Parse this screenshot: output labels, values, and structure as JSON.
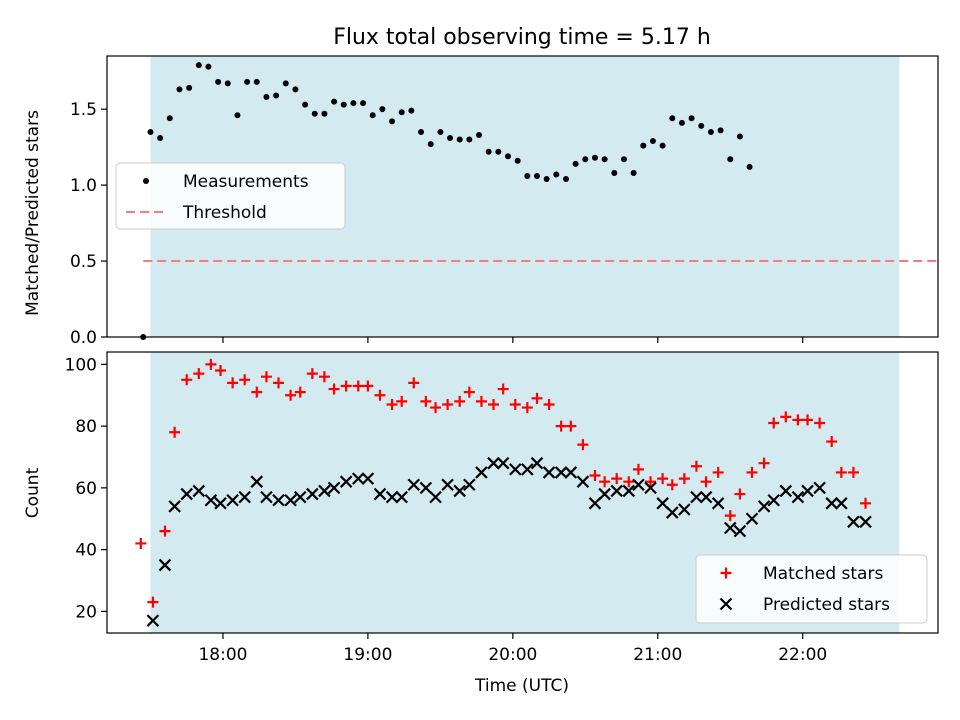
{
  "chart_data": [
    {
      "type": "scatter",
      "title": "Flux total observing time = 5.17 h",
      "xlabel": "",
      "ylabel": "Matched/Predicted stars",
      "xlim": [
        "17:12",
        "22:56"
      ],
      "ylim": [
        0,
        1.85
      ],
      "y_ticks": [
        0.0,
        0.5,
        1.0,
        1.5
      ],
      "y_tick_labels": [
        "0.0",
        "0.5",
        "1.0",
        "1.5"
      ],
      "x_ticks": [
        "18:00",
        "19:00",
        "20:00",
        "21:00",
        "22:00"
      ],
      "tick_labels_shown": false,
      "shaded_span": [
        "17:30",
        "22:40"
      ],
      "shade_color": "#d3eaf0",
      "legend_position": "center-left",
      "series": [
        {
          "name": "Measurements",
          "marker": "dot",
          "color": "#000000",
          "points": [
            [
              "17:27",
              0.0
            ],
            [
              "17:30",
              1.35
            ],
            [
              "17:34",
              1.31
            ],
            [
              "17:38",
              1.44
            ],
            [
              "17:42",
              1.63
            ],
            [
              "17:46",
              1.64
            ],
            [
              "17:50",
              1.79
            ],
            [
              "17:54",
              1.78
            ],
            [
              "17:58",
              1.68
            ],
            [
              "18:02",
              1.67
            ],
            [
              "18:06",
              1.46
            ],
            [
              "18:10",
              1.68
            ],
            [
              "18:14",
              1.68
            ],
            [
              "18:18",
              1.58
            ],
            [
              "18:22",
              1.59
            ],
            [
              "18:26",
              1.67
            ],
            [
              "18:30",
              1.63
            ],
            [
              "18:34",
              1.53
            ],
            [
              "18:38",
              1.47
            ],
            [
              "18:42",
              1.47
            ],
            [
              "18:46",
              1.55
            ],
            [
              "18:50",
              1.53
            ],
            [
              "18:54",
              1.54
            ],
            [
              "18:58",
              1.54
            ],
            [
              "19:02",
              1.46
            ],
            [
              "19:06",
              1.5
            ],
            [
              "19:10",
              1.42
            ],
            [
              "19:14",
              1.48
            ],
            [
              "19:18",
              1.49
            ],
            [
              "19:22",
              1.35
            ],
            [
              "19:26",
              1.27
            ],
            [
              "19:30",
              1.35
            ],
            [
              "19:34",
              1.31
            ],
            [
              "19:38",
              1.3
            ],
            [
              "19:42",
              1.3
            ],
            [
              "19:46",
              1.33
            ],
            [
              "19:50",
              1.22
            ],
            [
              "19:54",
              1.22
            ],
            [
              "19:58",
              1.19
            ],
            [
              "20:02",
              1.16
            ],
            [
              "20:06",
              1.06
            ],
            [
              "20:10",
              1.06
            ],
            [
              "20:14",
              1.04
            ],
            [
              "20:18",
              1.07
            ],
            [
              "20:22",
              1.04
            ],
            [
              "20:26",
              1.14
            ],
            [
              "20:30",
              1.17
            ],
            [
              "20:34",
              1.18
            ],
            [
              "20:38",
              1.17
            ],
            [
              "20:42",
              1.08
            ],
            [
              "20:46",
              1.17
            ],
            [
              "20:50",
              1.08
            ],
            [
              "20:54",
              1.26
            ],
            [
              "20:58",
              1.29
            ],
            [
              "21:02",
              1.26
            ],
            [
              "21:06",
              1.44
            ],
            [
              "21:10",
              1.41
            ],
            [
              "21:14",
              1.44
            ],
            [
              "21:18",
              1.39
            ],
            [
              "21:22",
              1.35
            ],
            [
              "21:26",
              1.36
            ],
            [
              "21:30",
              1.17
            ],
            [
              "21:34",
              1.32
            ],
            [
              "21:38",
              1.12
            ]
          ]
        },
        {
          "name": "Threshold",
          "line": "dashed",
          "color": "#f08080",
          "points": [
            [
              "17:27",
              0.5
            ],
            [
              "22:56",
              0.5
            ]
          ]
        }
      ]
    },
    {
      "type": "scatter",
      "title": "",
      "xlabel": "Time (UTC)",
      "ylabel": "Count",
      "xlim": [
        "17:12",
        "22:56"
      ],
      "ylim": [
        13,
        104
      ],
      "y_ticks": [
        20,
        40,
        60,
        80,
        100
      ],
      "y_tick_labels": [
        "20",
        "40",
        "60",
        "80",
        "100"
      ],
      "x_ticks": [
        "18:00",
        "19:00",
        "20:00",
        "21:00",
        "22:00"
      ],
      "x_tick_labels": [
        "18:00",
        "19:00",
        "20:00",
        "21:00",
        "22:00"
      ],
      "shaded_span": [
        "17:30",
        "22:40"
      ],
      "shade_color": "#d3eaf0",
      "legend_position": "lower-right",
      "series": [
        {
          "name": "Matched stars",
          "marker": "plus",
          "color": "#ff0000",
          "points": [
            [
              "17:26",
              42
            ],
            [
              "17:31",
              23
            ],
            [
              "17:36",
              46
            ],
            [
              "17:40",
              78
            ],
            [
              "17:45",
              95
            ],
            [
              "17:50",
              97
            ],
            [
              "17:55",
              100
            ],
            [
              "17:59",
              98
            ],
            [
              "18:04",
              94
            ],
            [
              "18:09",
              95
            ],
            [
              "18:14",
              91
            ],
            [
              "18:18",
              96
            ],
            [
              "18:23",
              94
            ],
            [
              "18:28",
              90
            ],
            [
              "18:32",
              91
            ],
            [
              "18:37",
              97
            ],
            [
              "18:42",
              96
            ],
            [
              "18:46",
              92
            ],
            [
              "18:51",
              93
            ],
            [
              "18:56",
              93
            ],
            [
              "19:00",
              93
            ],
            [
              "19:05",
              90
            ],
            [
              "19:10",
              87
            ],
            [
              "19:14",
              88
            ],
            [
              "19:19",
              94
            ],
            [
              "19:24",
              88
            ],
            [
              "19:28",
              86
            ],
            [
              "19:33",
              87
            ],
            [
              "19:38",
              88
            ],
            [
              "19:42",
              91
            ],
            [
              "19:47",
              88
            ],
            [
              "19:52",
              87
            ],
            [
              "19:56",
              92
            ],
            [
              "20:01",
              87
            ],
            [
              "20:06",
              86
            ],
            [
              "20:10",
              89
            ],
            [
              "20:15",
              87
            ],
            [
              "20:20",
              80
            ],
            [
              "20:24",
              80
            ],
            [
              "20:29",
              74
            ],
            [
              "20:34",
              64
            ],
            [
              "20:38",
              62
            ],
            [
              "20:43",
              63
            ],
            [
              "20:48",
              62
            ],
            [
              "20:52",
              66
            ],
            [
              "20:57",
              62
            ],
            [
              "21:02",
              63
            ],
            [
              "21:06",
              61
            ],
            [
              "21:11",
              63
            ],
            [
              "21:16",
              67
            ],
            [
              "21:20",
              62
            ],
            [
              "21:25",
              65
            ],
            [
              "21:30",
              51
            ],
            [
              "21:34",
              58
            ],
            [
              "21:39",
              65
            ],
            [
              "21:44",
              68
            ],
            [
              "21:48",
              81
            ],
            [
              "21:53",
              83
            ],
            [
              "21:58",
              82
            ],
            [
              "22:02",
              82
            ],
            [
              "22:07",
              81
            ],
            [
              "22:12",
              75
            ],
            [
              "22:16",
              65
            ],
            [
              "22:21",
              65
            ],
            [
              "22:26",
              55
            ]
          ]
        },
        {
          "name": "Predicted stars",
          "marker": "x",
          "color": "#000000",
          "points": [
            [
              "17:31",
              17
            ],
            [
              "17:36",
              35
            ],
            [
              "17:40",
              54
            ],
            [
              "17:45",
              58
            ],
            [
              "17:50",
              59
            ],
            [
              "17:55",
              56
            ],
            [
              "17:59",
              55
            ],
            [
              "18:04",
              56
            ],
            [
              "18:09",
              57
            ],
            [
              "18:14",
              62
            ],
            [
              "18:18",
              57
            ],
            [
              "18:23",
              56
            ],
            [
              "18:28",
              56
            ],
            [
              "18:32",
              57
            ],
            [
              "18:37",
              58
            ],
            [
              "18:42",
              59
            ],
            [
              "18:46",
              60
            ],
            [
              "18:51",
              62
            ],
            [
              "18:56",
              63
            ],
            [
              "19:00",
              63
            ],
            [
              "19:05",
              58
            ],
            [
              "19:10",
              57
            ],
            [
              "19:14",
              57
            ],
            [
              "19:19",
              61
            ],
            [
              "19:24",
              60
            ],
            [
              "19:28",
              57
            ],
            [
              "19:33",
              61
            ],
            [
              "19:38",
              59
            ],
            [
              "19:42",
              61
            ],
            [
              "19:47",
              65
            ],
            [
              "19:52",
              68
            ],
            [
              "19:56",
              68
            ],
            [
              "20:01",
              66
            ],
            [
              "20:06",
              66
            ],
            [
              "20:10",
              68
            ],
            [
              "20:15",
              65
            ],
            [
              "20:20",
              65
            ],
            [
              "20:24",
              65
            ],
            [
              "20:29",
              62
            ],
            [
              "20:34",
              55
            ],
            [
              "20:38",
              58
            ],
            [
              "20:43",
              59
            ],
            [
              "20:48",
              59
            ],
            [
              "20:52",
              61
            ],
            [
              "20:57",
              60
            ],
            [
              "21:02",
              55
            ],
            [
              "21:06",
              52
            ],
            [
              "21:11",
              53
            ],
            [
              "21:16",
              57
            ],
            [
              "21:20",
              57
            ],
            [
              "21:25",
              55
            ],
            [
              "21:30",
              47
            ],
            [
              "21:34",
              46
            ],
            [
              "21:39",
              50
            ],
            [
              "21:44",
              54
            ],
            [
              "21:48",
              56
            ],
            [
              "21:53",
              59
            ],
            [
              "21:58",
              57
            ],
            [
              "22:02",
              59
            ],
            [
              "22:07",
              60
            ],
            [
              "22:12",
              55
            ],
            [
              "22:16",
              55
            ],
            [
              "22:21",
              49
            ],
            [
              "22:26",
              49
            ]
          ]
        }
      ]
    }
  ]
}
